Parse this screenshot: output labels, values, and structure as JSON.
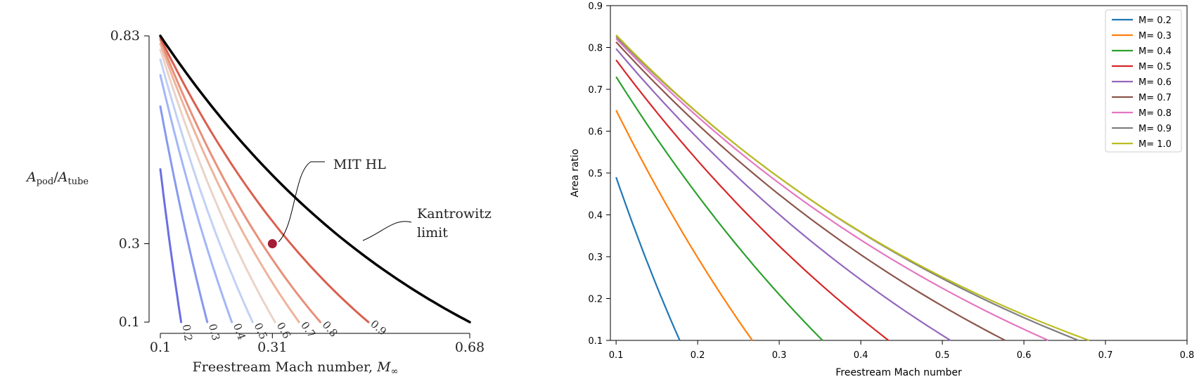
{
  "chart_data": [
    {
      "type": "line",
      "title": "",
      "xlabel": "Freestream Mach number, ",
      "xlabel_math": "M",
      "xlabel_math_sub": "∞",
      "ylabel_math": "A",
      "ylabel_num_sub": "pod",
      "ylabel_den_sub": "tube",
      "xlim": [
        0.1,
        0.68
      ],
      "ylim": [
        0.1,
        0.83
      ],
      "x_ticks": [
        0.1,
        0.31,
        0.68
      ],
      "x_tick_labels": [
        "0.1",
        "0.31",
        "0.68"
      ],
      "y_ticks": [
        0.1,
        0.3,
        0.83
      ],
      "y_tick_labels": [
        "0.1",
        "0.3",
        "0.83"
      ],
      "contour_curves": [
        {
          "label": "0.2",
          "color": "#6a6fe0",
          "x": [
            0.1,
            0.139
          ],
          "y": [
            0.49,
            0.1
          ]
        },
        {
          "label": "0.3",
          "color": "#8799f0",
          "x": [
            0.1,
            0.188
          ],
          "y": [
            0.65,
            0.1
          ]
        },
        {
          "label": "0.4",
          "color": "#a3b6f6",
          "x": [
            0.1,
            0.234
          ],
          "y": [
            0.73,
            0.1
          ]
        },
        {
          "label": "0.5",
          "color": "#c3d1f4",
          "x": [
            0.1,
            0.273
          ],
          "y": [
            0.77,
            0.1
          ]
        },
        {
          "label": "0.6",
          "color": "#ead3c8",
          "x": [
            0.1,
            0.315
          ],
          "y": [
            0.795,
            0.1
          ]
        },
        {
          "label": "0.7",
          "color": "#eeb49c",
          "x": [
            0.1,
            0.36
          ],
          "y": [
            0.81,
            0.1
          ]
        },
        {
          "label": "0.8",
          "color": "#e8907a",
          "x": [
            0.1,
            0.4
          ],
          "y": [
            0.82,
            0.1
          ]
        },
        {
          "label": "0.9",
          "color": "#d8604e",
          "x": [
            0.1,
            0.49
          ],
          "y": [
            0.825,
            0.1
          ]
        }
      ],
      "limit_curve": {
        "color": "#000000",
        "x": [
          0.1,
          0.68
        ],
        "y": [
          0.83,
          0.1
        ]
      },
      "highlight_point": {
        "x": 0.31,
        "y": 0.3,
        "color": "#a51d36"
      },
      "annotations": [
        {
          "text": "MIT HL"
        },
        {
          "text": "Kantrowitz"
        },
        {
          "text": "limit"
        }
      ],
      "grid": false
    },
    {
      "type": "line",
      "title": "",
      "xlabel": "Freestream Mach number",
      "ylabel": "Area ratio",
      "xlim": [
        0.093,
        0.8
      ],
      "ylim": [
        0.1,
        0.9
      ],
      "x_ticks": [
        0.1,
        0.2,
        0.3,
        0.4,
        0.5,
        0.6,
        0.7,
        0.8
      ],
      "x_tick_labels": [
        "0.1",
        "0.2",
        "0.3",
        "0.4",
        "0.5",
        "0.6",
        "0.7",
        "0.8"
      ],
      "y_ticks": [
        0.1,
        0.2,
        0.3,
        0.4,
        0.5,
        0.6,
        0.7,
        0.8,
        0.9
      ],
      "y_tick_labels": [
        "0.1",
        "0.2",
        "0.3",
        "0.4",
        "0.5",
        "0.6",
        "0.7",
        "0.8",
        "0.9"
      ],
      "legend_position": "top-right",
      "series": [
        {
          "name": "M= 0.2",
          "color": "#1f77b4",
          "x": [
            0.1,
            0.178
          ],
          "y": [
            0.49,
            0.1
          ]
        },
        {
          "name": "M= 0.3",
          "color": "#ff7f0e",
          "x": [
            0.1,
            0.267
          ],
          "y": [
            0.65,
            0.1
          ]
        },
        {
          "name": "M= 0.4",
          "color": "#2ca02c",
          "x": [
            0.1,
            0.353
          ],
          "y": [
            0.73,
            0.1
          ]
        },
        {
          "name": "M= 0.5",
          "color": "#d62728",
          "x": [
            0.1,
            0.434
          ],
          "y": [
            0.77,
            0.1
          ]
        },
        {
          "name": "M= 0.6",
          "color": "#9467bd",
          "x": [
            0.1,
            0.51
          ],
          "y": [
            0.797,
            0.1
          ]
        },
        {
          "name": "M= 0.7",
          "color": "#8c564b",
          "x": [
            0.1,
            0.577
          ],
          "y": [
            0.813,
            0.1
          ]
        },
        {
          "name": "M= 0.8",
          "color": "#e377c2",
          "x": [
            0.1,
            0.63
          ],
          "y": [
            0.821,
            0.1
          ]
        },
        {
          "name": "M= 0.9",
          "color": "#7f7f7f",
          "x": [
            0.1,
            0.667
          ],
          "y": [
            0.826,
            0.1
          ]
        },
        {
          "name": "M= 1.0",
          "color": "#bcbd22",
          "x": [
            0.1,
            0.68
          ],
          "y": [
            0.83,
            0.1
          ]
        }
      ],
      "grid": false
    }
  ]
}
